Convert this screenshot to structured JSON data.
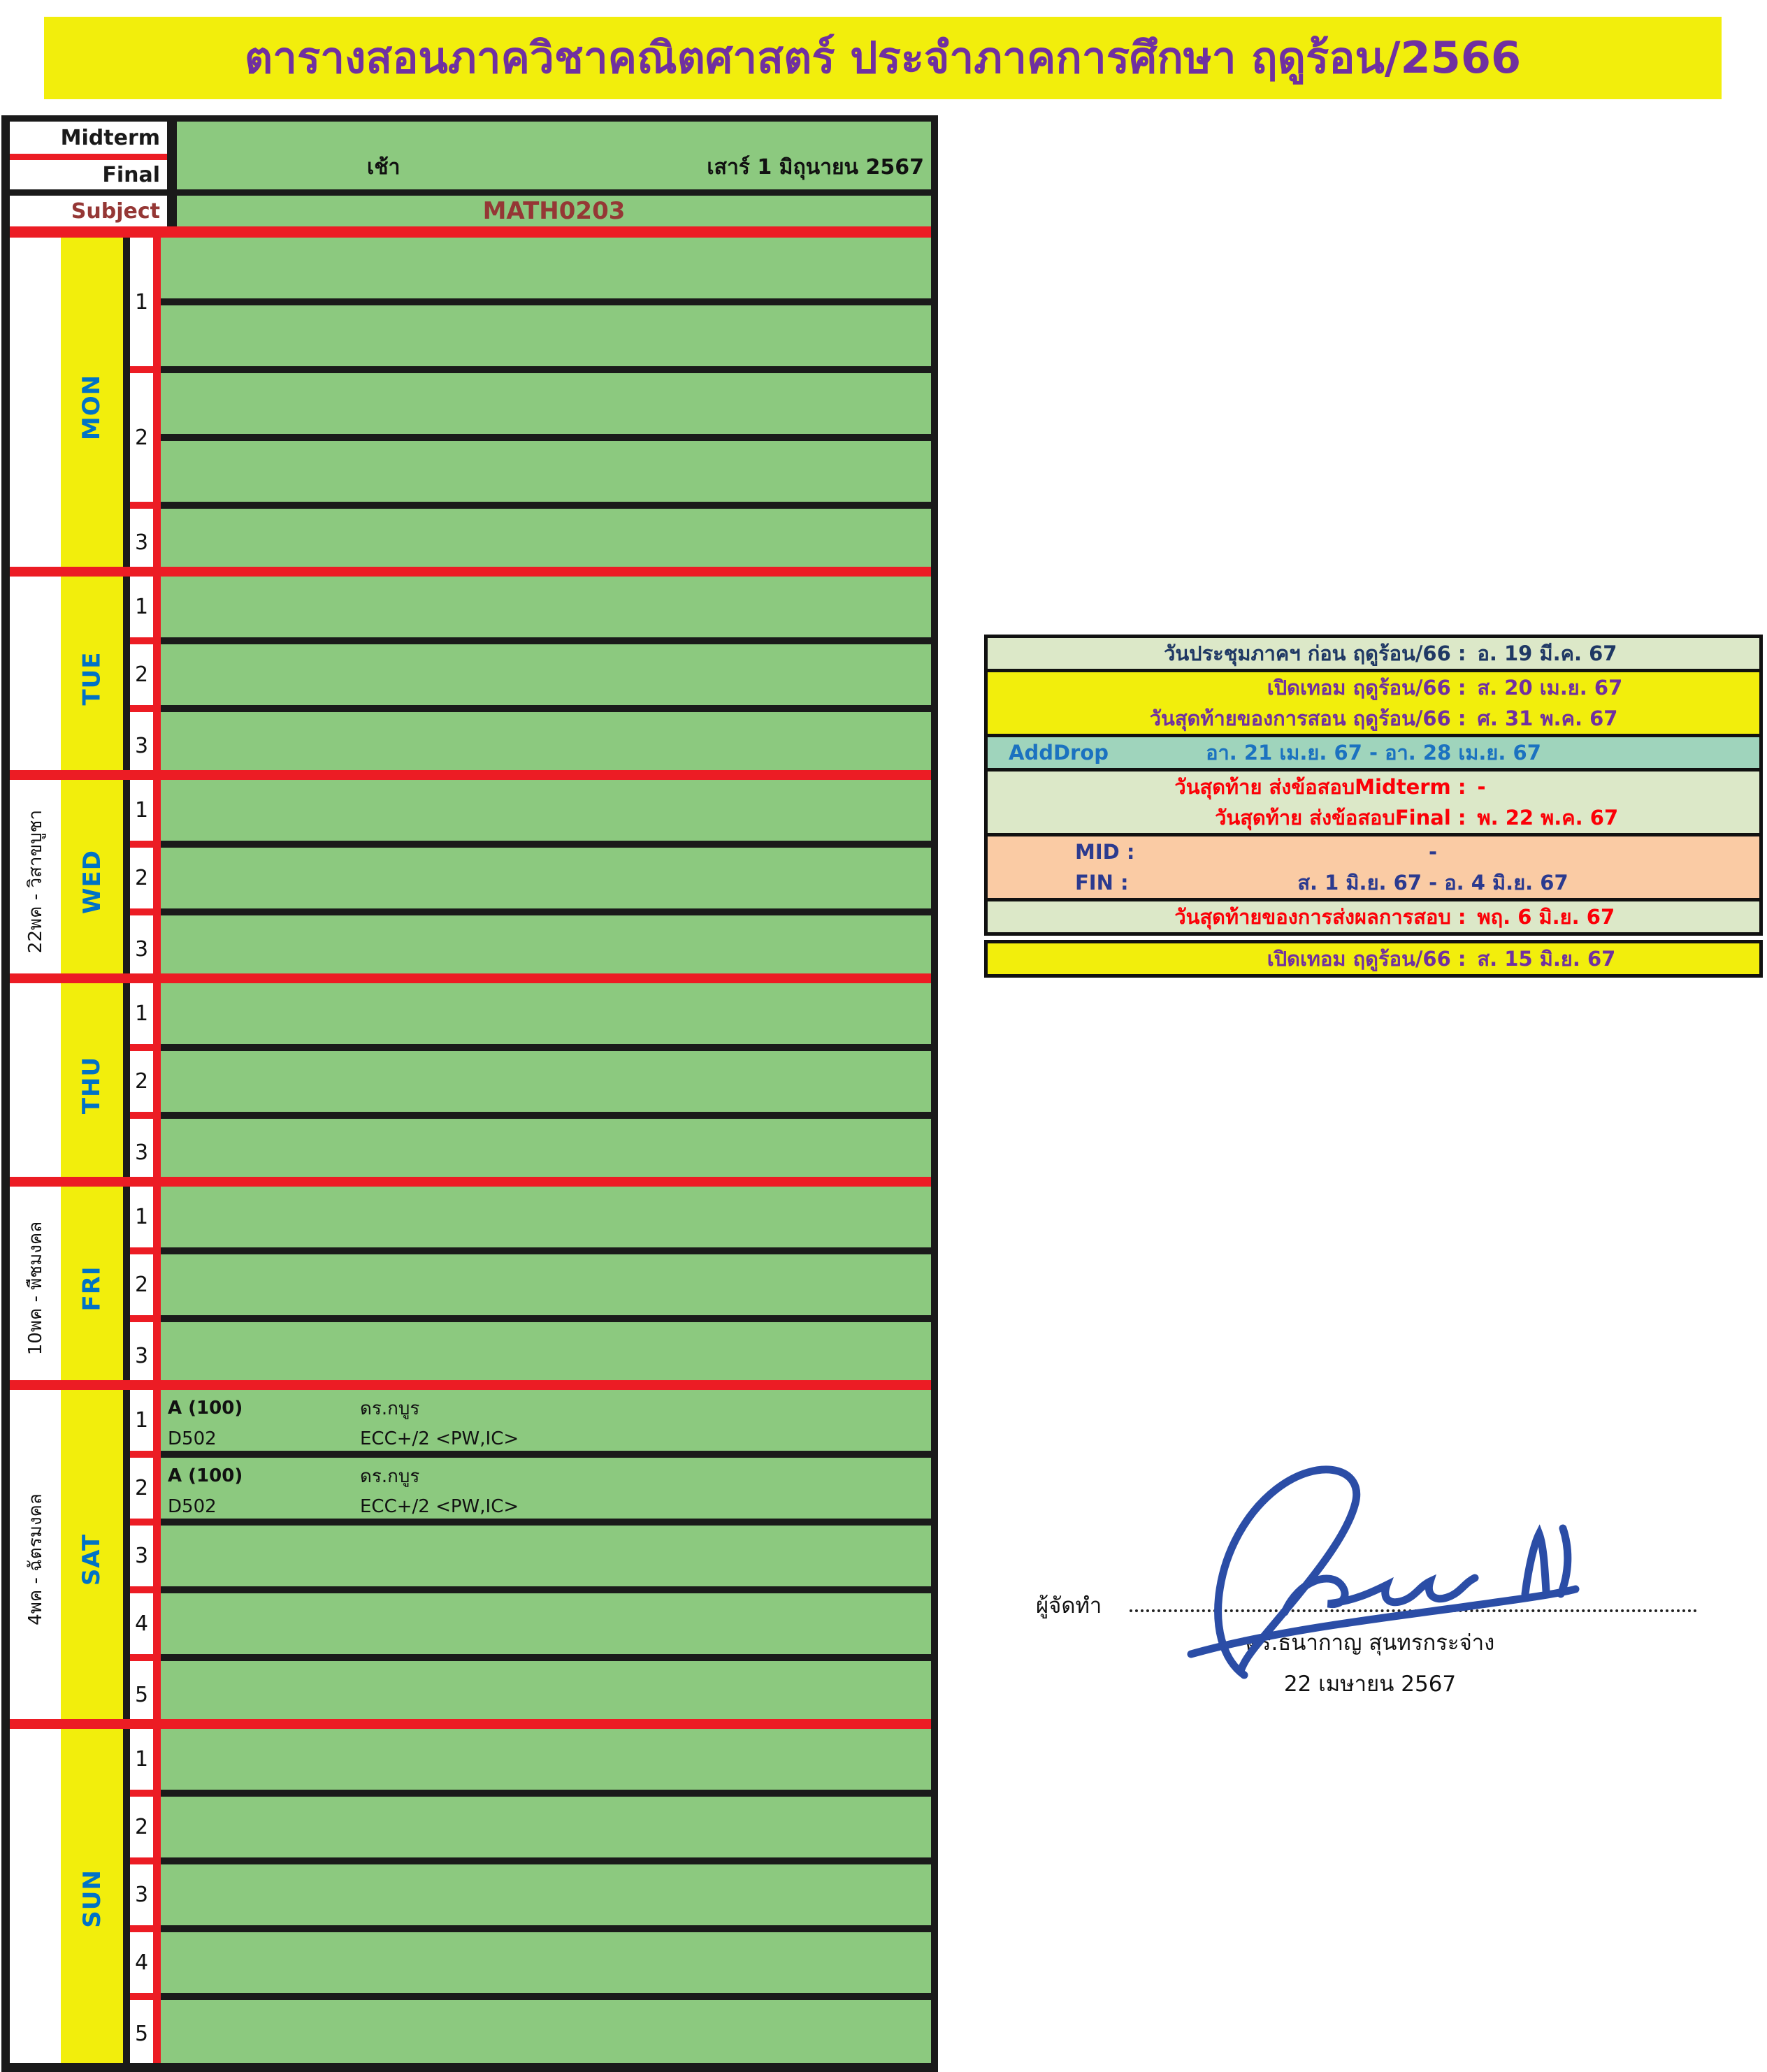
{
  "title": "ตารางสอนภาควิชาคณิตศาสตร์ ประจำภาคการศึกษา ฤดูร้อน/2566",
  "schedule": {
    "header": {
      "midterm_label": "Midterm",
      "final_label": "Final",
      "subject_label": "Subject",
      "session": "เช้า",
      "exam_date": "เสาร์ 1 มิถุนายน 2567",
      "subject_code": "MATH0203"
    },
    "days": [
      {
        "label": "MON",
        "holiday": "",
        "periods": [
          {
            "num": "1",
            "rows": 2
          },
          {
            "num": "2",
            "rows": 2
          },
          {
            "num": "3",
            "rows": 1
          }
        ]
      },
      {
        "label": "TUE",
        "holiday": "",
        "periods": [
          {
            "num": "1",
            "rows": 1
          },
          {
            "num": "2",
            "rows": 1
          },
          {
            "num": "3",
            "rows": 1
          }
        ]
      },
      {
        "label": "WED",
        "holiday": "22พค - วิสาขบูชา",
        "periods": [
          {
            "num": "1",
            "rows": 1
          },
          {
            "num": "2",
            "rows": 1
          },
          {
            "num": "3",
            "rows": 1
          }
        ]
      },
      {
        "label": "THU",
        "holiday": "",
        "periods": [
          {
            "num": "1",
            "rows": 1
          },
          {
            "num": "2",
            "rows": 1
          },
          {
            "num": "3",
            "rows": 1
          }
        ]
      },
      {
        "label": "FRI",
        "holiday": "10พค - พืชมงคล",
        "periods": [
          {
            "num": "1",
            "rows": 1
          },
          {
            "num": "2",
            "rows": 1
          },
          {
            "num": "3",
            "rows": 1
          }
        ]
      },
      {
        "label": "SAT",
        "holiday": "4พค - ฉัตรมงคล",
        "periods": [
          {
            "num": "1",
            "rows": 1,
            "entry": {
              "section": "A (100)",
              "instructor": "ดร.กบูร",
              "room": "D502",
              "detail": "ECC+/2 <PW,IC>"
            }
          },
          {
            "num": "2",
            "rows": 1,
            "entry": {
              "section": "A (100)",
              "instructor": "ดร.กบูร",
              "room": "D502",
              "detail": "ECC+/2 <PW,IC>"
            }
          },
          {
            "num": "3",
            "rows": 1
          },
          {
            "num": "4",
            "rows": 1
          },
          {
            "num": "5",
            "rows": 1
          }
        ]
      },
      {
        "label": "SUN",
        "holiday": "",
        "periods": [
          {
            "num": "1",
            "rows": 1
          },
          {
            "num": "2",
            "rows": 1
          },
          {
            "num": "3",
            "rows": 1
          },
          {
            "num": "4",
            "rows": 1
          },
          {
            "num": "5",
            "rows": 1
          }
        ]
      }
    ]
  },
  "info_table": {
    "blocks": [
      {
        "bg": "pale",
        "rows": [
          {
            "color": "navy",
            "align": "colon",
            "label": "วันประชุมภาคฯ ก่อน ฤดูร้อน/66 :",
            "value": "อ. 19 มี.ค. 67"
          }
        ]
      },
      {
        "bg": "yellow",
        "rows": [
          {
            "color": "purple",
            "align": "colon",
            "label": "เปิดเทอม ฤดูร้อน/66 :",
            "value": "ส. 20 เม.ย. 67"
          },
          {
            "color": "purple",
            "align": "colon",
            "label": "วันสุดท้ายของการสอน ฤดูร้อน/66 :",
            "value": "ศ. 31 พ.ค. 67"
          }
        ]
      },
      {
        "bg": "teal",
        "rows": [
          {
            "color": "blue",
            "align": "addrop",
            "label": "AddDrop",
            "value": "อา. 21 เม.ย. 67   -   อา. 28 เม.ย. 67"
          }
        ]
      },
      {
        "bg": "pale",
        "rows": [
          {
            "color": "red",
            "align": "colon",
            "label": "วันสุดท้าย ส่งข้อสอบMidterm :",
            "value": "-"
          },
          {
            "color": "red",
            "align": "colon",
            "label": "วันสุดท้าย ส่งข้อสอบFinal :",
            "value": "พ. 22 พ.ค. 67"
          }
        ]
      },
      {
        "bg": "peach",
        "rows": [
          {
            "color": "indigo",
            "align": "midfin",
            "label": "MID :",
            "value": "-"
          },
          {
            "color": "indigo",
            "align": "midfin",
            "label": "FIN :",
            "value": "ส. 1 มิ.ย. 67   -   อ. 4 มิ.ย. 67"
          }
        ]
      },
      {
        "bg": "pale",
        "rows": [
          {
            "color": "red",
            "align": "colon",
            "label": "วันสุดท้ายของการส่งผลการสอบ :",
            "value": "พฤ. 6 มิ.ย. 67"
          }
        ]
      },
      {
        "bg": "yellow",
        "gap_before": true,
        "rows": [
          {
            "color": "purple",
            "align": "colon",
            "label": "เปิดเทอม ฤดูร้อน/66 :",
            "value": "ส. 15 มิ.ย. 67"
          }
        ]
      }
    ]
  },
  "signature": {
    "prepared_by_label": "ผู้จัดทำ",
    "name": "ดร.ธนากาญ สุนทรกระจ่าง",
    "date": "22 เมษายน 2567"
  },
  "colors": {
    "titlebg": "#F2EE0C",
    "titletext": "#7030A0",
    "green": "#8CC97F",
    "yellow": "#F2EE0C",
    "red": "#EC1C24",
    "line": "#1A1A1A",
    "dayblue": "#0072C6",
    "maroon": "#953735",
    "pale": "#DCE8C8",
    "teal": "#9FD4BC",
    "peach": "#FACBA4",
    "navy": "#1F3864",
    "purple": "#7030A0",
    "blue": "#1B72C0",
    "indigo": "#2B3A8F",
    "inforedtext": "#FB0007",
    "signature": "#2B4DA6"
  }
}
